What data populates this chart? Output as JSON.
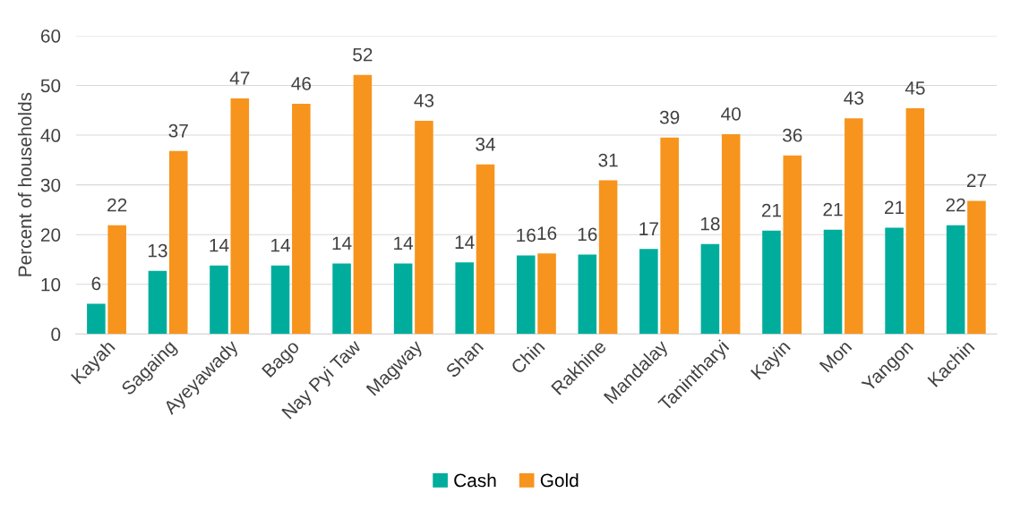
{
  "chart_data": {
    "type": "bar",
    "ylabel": "Percent of households",
    "categories": [
      "Kayah",
      "Sagaing",
      "Ayeyawady",
      "Bago",
      "Nay Pyi Taw",
      "Magway",
      "Shan",
      "Chin",
      "Rakhine",
      "Mandalay",
      "Tanintharyi",
      "Kayin",
      "Mon",
      "Yangon",
      "Kachin"
    ],
    "series": [
      {
        "name": "Cash",
        "color": "#00ad9c",
        "values": [
          6.1,
          12.7,
          13.8,
          13.8,
          14.2,
          14.2,
          14.4,
          15.8,
          16.0,
          17.1,
          18.1,
          20.8,
          21.0,
          21.4,
          21.9
        ],
        "value_labels": [
          "6",
          "13",
          "14",
          "14",
          "14",
          "14",
          "14",
          "16",
          "16",
          "17",
          "18",
          "21",
          "21",
          "21",
          "22"
        ]
      },
      {
        "name": "Gold",
        "color": "#f7941d",
        "values": [
          21.9,
          36.8,
          47.4,
          46.3,
          52.1,
          42.9,
          34.1,
          16.2,
          30.9,
          39.5,
          40.2,
          35.9,
          43.4,
          45.4,
          26.8
        ],
        "value_labels": [
          "22",
          "37",
          "47",
          "46",
          "52",
          "43",
          "34",
          "16",
          "31",
          "39",
          "40",
          "36",
          "43",
          "45",
          "27"
        ]
      }
    ],
    "ylim": [
      0,
      60
    ],
    "yticks": [
      0,
      10,
      20,
      30,
      40,
      50,
      60
    ],
    "grid": "y",
    "legend": "bottom"
  }
}
